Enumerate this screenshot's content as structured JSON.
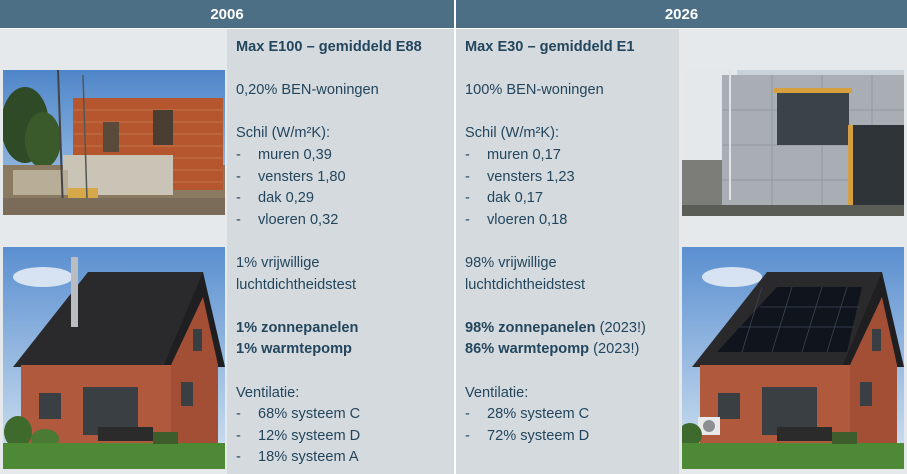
{
  "headers": {
    "left": "2006",
    "right": "2026"
  },
  "col2006": {
    "title": "Max E100 – gemiddeld E88",
    "ben": "0,20% BEN-woningen",
    "schil_label": "Schil (W/m²K):",
    "schil": [
      {
        "name": "muren",
        "value": "0,39"
      },
      {
        "name": "vensters",
        "value": "1,80"
      },
      {
        "name": "dak",
        "value": "0,29"
      },
      {
        "name": "vloeren",
        "value": "0,32"
      }
    ],
    "test_line1": "1% vrijwillige",
    "test_line2": "luchtdichtheidstest",
    "zon": "1% zonnepanelen",
    "warmte": "1% warmtepomp",
    "ventilatie_label": "Ventilatie:",
    "ventilatie": [
      "68% systeem C",
      "12% systeem D",
      "18% systeem A"
    ]
  },
  "col2026": {
    "title": "Max E30 – gemiddeld E1",
    "ben": "100% BEN-woningen",
    "schil_label": "Schil (W/m²K):",
    "schil": [
      {
        "name": "muren",
        "value": "0,17"
      },
      {
        "name": "vensters",
        "value": "1,23"
      },
      {
        "name": "dak",
        "value": "0,17"
      },
      {
        "name": "vloeren",
        "value": "0,18"
      }
    ],
    "test_line1": "98% vrijwillige",
    "test_line2": "luchtdichtheidstest",
    "zon": "98% zonnepanelen",
    "zon_note": "(2023!)",
    "warmte": "86% warmtepomp",
    "warmte_note": "(2023!)",
    "ventilatie_label": "Ventilatie:",
    "ventilatie": [
      "28% systeem C",
      "72% systeem D"
    ]
  },
  "bullet_char": "-",
  "colors": {
    "header_bg": "#4d6f86",
    "text": "#23465d",
    "column_bg": "#d5dadf",
    "side_bg": "#e6e9ec"
  }
}
